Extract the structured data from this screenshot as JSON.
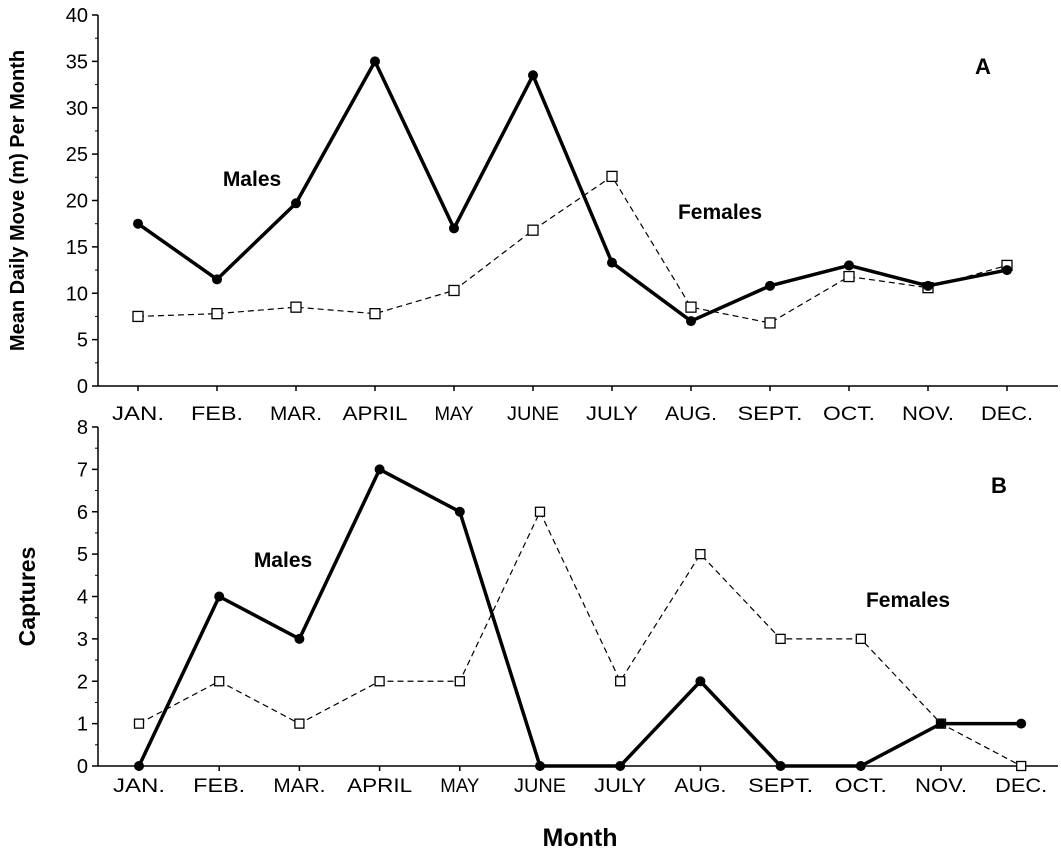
{
  "figure": {
    "xlabel": "Month"
  },
  "chart_data": [
    {
      "type": "line",
      "panel_label": "A",
      "ylabel": "Mean Daily Move (m) Per Month",
      "ylim": [
        0,
        40
      ],
      "yticks": [
        0,
        5,
        10,
        15,
        20,
        25,
        30,
        35,
        40
      ],
      "categories": [
        "JAN.",
        "FEB.",
        "MAR.",
        "APRIL",
        "MAY",
        "JUNE",
        "JULY",
        "AUG.",
        "SEPT.",
        "OCT.",
        "NOV.",
        "DEC."
      ],
      "grid": false,
      "series": [
        {
          "name": "Males",
          "style": "solid",
          "marker": "filled-circle",
          "color": "#000000",
          "values": [
            17.5,
            11.5,
            19.7,
            35,
            17,
            33.5,
            13.3,
            7,
            10.8,
            13,
            10.8,
            12.5
          ]
        },
        {
          "name": "Females",
          "style": "dashed",
          "marker": "open-square",
          "color": "#000000",
          "values": [
            7.5,
            7.8,
            8.5,
            7.8,
            10.3,
            16.8,
            22.6,
            8.5,
            6.8,
            11.8,
            10.6,
            13
          ]
        }
      ]
    },
    {
      "type": "line",
      "panel_label": "B",
      "ylabel": "Captures",
      "ylim": [
        0,
        8
      ],
      "yticks": [
        0,
        1,
        2,
        3,
        4,
        5,
        6,
        7,
        8
      ],
      "categories": [
        "JAN.",
        "FEB.",
        "MAR.",
        "APRIL",
        "MAY",
        "JUNE",
        "JULY",
        "AUG.",
        "SEPT.",
        "OCT.",
        "NOV.",
        "DEC."
      ],
      "grid": false,
      "series": [
        {
          "name": "Males",
          "style": "solid",
          "marker": "filled-circle",
          "color": "#000000",
          "values": [
            0,
            4,
            3,
            7,
            6,
            0,
            0,
            2,
            0,
            0,
            1,
            1
          ]
        },
        {
          "name": "Females",
          "style": "dashed",
          "marker": "open-square",
          "color": "#000000",
          "values": [
            1,
            2,
            1,
            2,
            2,
            6,
            2,
            5,
            3,
            3,
            1,
            0
          ]
        }
      ]
    }
  ]
}
